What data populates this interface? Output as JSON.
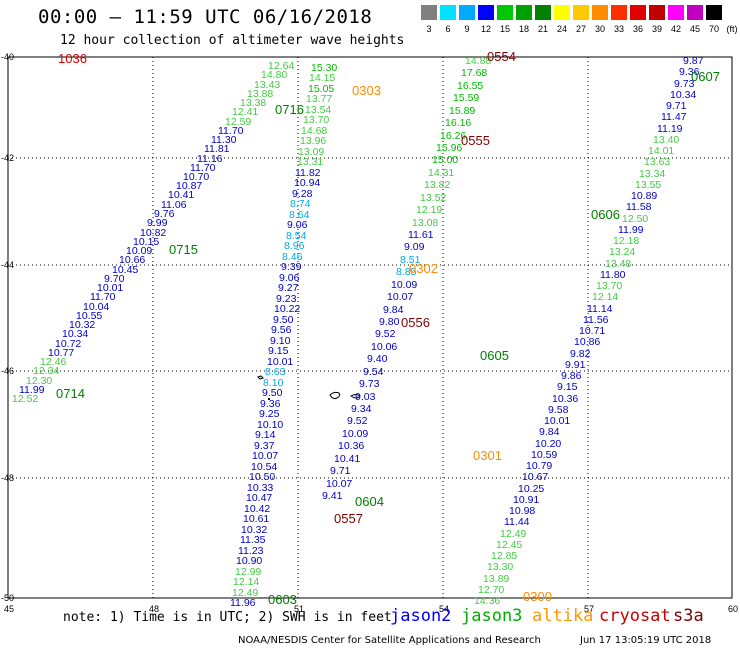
{
  "header": {
    "title": "00:00 – 11:59 UTC 06/16/2018",
    "subtitle": "12 hour collection of altimeter wave heights"
  },
  "legend": {
    "unit": "(ft)",
    "items": [
      {
        "label": "3",
        "color": "#808080"
      },
      {
        "label": "6",
        "color": "#00e0ff"
      },
      {
        "label": "9",
        "color": "#00aaff"
      },
      {
        "label": "12",
        "color": "#0000ff"
      },
      {
        "label": "15",
        "color": "#00c800"
      },
      {
        "label": "18",
        "color": "#00a000"
      },
      {
        "label": "21",
        "color": "#008000"
      },
      {
        "label": "24",
        "color": "#ffff00"
      },
      {
        "label": "27",
        "color": "#ffc800"
      },
      {
        "label": "30",
        "color": "#ff8c00"
      },
      {
        "label": "33",
        "color": "#ff3000"
      },
      {
        "label": "36",
        "color": "#e00000"
      },
      {
        "label": "39",
        "color": "#c00000"
      },
      {
        "label": "42",
        "color": "#ff00ff"
      },
      {
        "label": "45",
        "color": "#c000c0"
      },
      {
        "label": "70",
        "color": "#000000"
      }
    ]
  },
  "axes": {
    "lat_labels": [
      "-40",
      "-42",
      "-44",
      "-46",
      "-48",
      "-50"
    ],
    "lon_labels": [
      "45",
      "48",
      "51",
      "54",
      "57",
      "60"
    ]
  },
  "tracks": [
    {
      "name": "0714",
      "color": "#00a000",
      "values": [
        "12.52",
        "11.99",
        "12.30",
        "12.34",
        "12.46",
        "10.77",
        "10.72",
        "10.34",
        "10.32",
        "10.55",
        "10.04",
        "11.70",
        "10.01",
        "9.70",
        "10.45",
        "10.66",
        "10.09",
        "10.15",
        "10.82",
        "9.99",
        "9.76",
        "11.06",
        "10.41",
        "10.87",
        "10.70",
        "11.70",
        "11.16",
        "11.81",
        "11.30",
        "11.70",
        "12.59",
        "12.41",
        "13.38",
        "13.88",
        "13.43",
        "14.80",
        "12.64"
      ]
    },
    {
      "name": "0716",
      "color": "#00a000",
      "values": [
        "15.30",
        "14.15",
        "15.05",
        "13.77",
        "13.54",
        "13.70",
        "14.68",
        "13.96",
        "13.09",
        "13.31",
        "11.82",
        "10.94",
        "9.28",
        "8.74",
        "8.64",
        "9.06",
        "8.54",
        "8.96",
        "8.46",
        "9.39",
        "9.06",
        "9.27",
        "9.23",
        "10.22",
        "9.50",
        "9.56",
        "9.10",
        "9.15",
        "10.01",
        "8.63",
        "8.10",
        "9.50",
        "9.36",
        "9.25",
        "10.10",
        "9.14",
        "9.37",
        "10.07",
        "10.54",
        "10.50",
        "10.33",
        "10.47",
        "10.42",
        "10.61",
        "10.32",
        "11.35",
        "11.23",
        "10.90",
        "12.99",
        "12.14",
        "12.49",
        "11.96"
      ]
    },
    {
      "name": "0555",
      "color": "#00c800",
      "values": [
        "14.88",
        "17.68",
        "16.55",
        "15.59",
        "15.89",
        "16.16",
        "16.26",
        "15.96",
        "15.00",
        "14.31",
        "13.82",
        "13.52",
        "12.19",
        "13.08",
        "11.61",
        "9.09",
        "8.51",
        "8.85",
        "10.09",
        "10.07",
        "9.84",
        "9.80",
        "9.52",
        "10.06",
        "9.40",
        "9.54",
        "9.73",
        "9.03",
        "9.34",
        "9.52",
        "10.09",
        "10.36",
        "10.41",
        "9.71",
        "10.07",
        "9.41"
      ]
    },
    {
      "name": "0605",
      "color": "#0000c8",
      "values": [
        "9.87",
        "9.36",
        "9.73",
        "10.34",
        "9.71",
        "11.47",
        "11.19",
        "13.40",
        "14.01",
        "13.63",
        "13.34",
        "13.55",
        "10.89",
        "11.58",
        "12.50",
        "11.99",
        "12.18",
        "13.24",
        "13.48",
        "11.80",
        "13.70",
        "12.14",
        "11.14",
        "11.56",
        "10.71",
        "10.86",
        "9.82",
        "9.91",
        "9.86",
        "9.15",
        "10.36",
        "9.58",
        "10.01",
        "9.84",
        "10.20",
        "10.59",
        "10.79",
        "10.67",
        "10.25",
        "10.91",
        "10.98",
        "11.44",
        "12.49",
        "12.45",
        "12.85",
        "13.30",
        "13.89",
        "12.70",
        "14.36"
      ]
    },
    {
      "name": "0557",
      "color": "#008000",
      "values": []
    }
  ],
  "track_labels": [
    {
      "text": "1036",
      "color": "#e00000"
    },
    {
      "text": "0554",
      "color": "#800000"
    },
    {
      "text": "0607",
      "color": "#008000"
    },
    {
      "text": "0303",
      "color": "#ff8c00"
    },
    {
      "text": "0716",
      "color": "#008000"
    },
    {
      "text": "0555",
      "color": "#800000"
    },
    {
      "text": "0606",
      "color": "#008000"
    },
    {
      "text": "0715",
      "color": "#008000"
    },
    {
      "text": "0302",
      "color": "#ff8c00"
    },
    {
      "text": "0556",
      "color": "#800000"
    },
    {
      "text": "0605",
      "color": "#008000"
    },
    {
      "text": "0714",
      "color": "#008000"
    },
    {
      "text": "0301",
      "color": "#ff8c00"
    },
    {
      "text": "0604",
      "color": "#008000"
    },
    {
      "text": "0557",
      "color": "#800000"
    },
    {
      "text": "0603",
      "color": "#008000"
    },
    {
      "text": "0300",
      "color": "#ff8c00"
    }
  ],
  "footer": {
    "note": "note: 1) Time is in UTC; 2) SWH is in feet",
    "satellites": [
      {
        "name": "jason2",
        "color": "#0000ff"
      },
      {
        "name": "jason3",
        "color": "#00b000"
      },
      {
        "name": "altika",
        "color": "#ff9900"
      },
      {
        "name": "cryosat",
        "color": "#cc0000"
      },
      {
        "name": "s3a",
        "color": "#800000"
      }
    ],
    "credit": "NOAA/NESDIS Center for Satellite Applications and Research",
    "timestamp": "Jun 17 13:05:19 UTC 2018"
  }
}
